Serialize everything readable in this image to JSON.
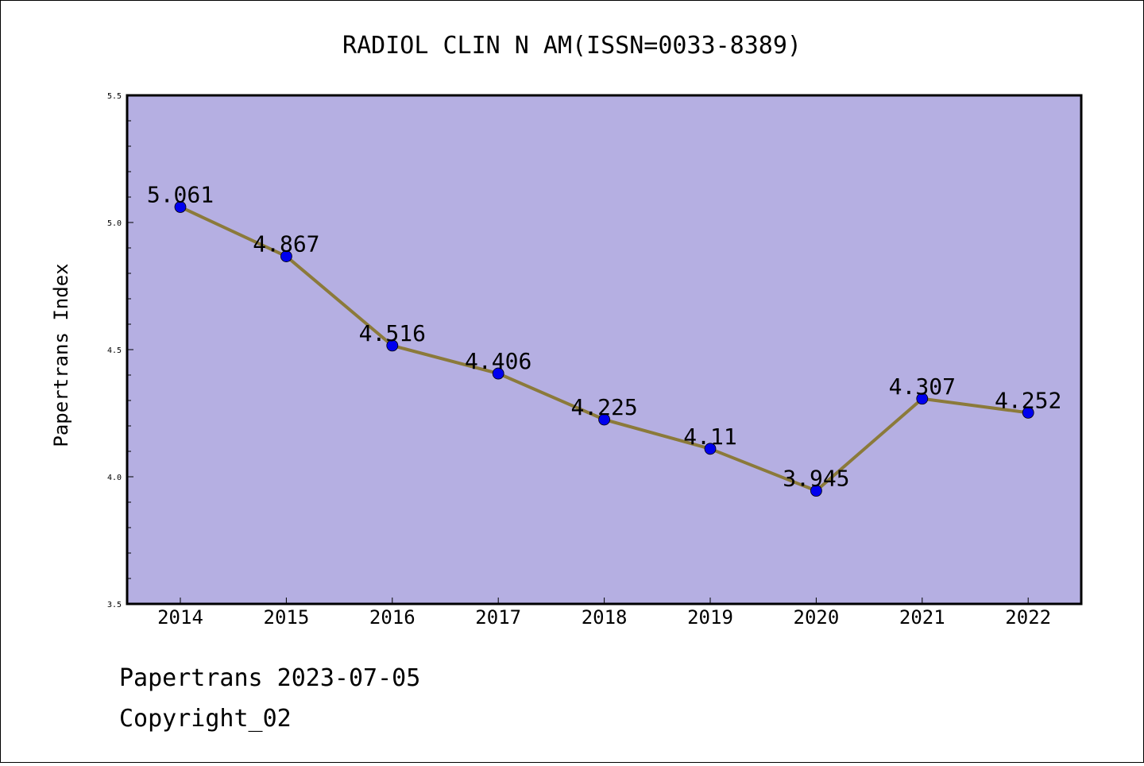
{
  "chart_data": {
    "type": "line",
    "title": "RADIOL CLIN N AM(ISSN=0033-8389)",
    "ylabel": "Papertrans Index",
    "xlabel": "",
    "categories": [
      "2014",
      "2015",
      "2016",
      "2017",
      "2018",
      "2019",
      "2020",
      "2021",
      "2022"
    ],
    "values": [
      5.061,
      4.867,
      4.516,
      4.406,
      4.225,
      4.11,
      3.945,
      4.307,
      4.252
    ],
    "data_labels": [
      "5.061",
      "4.867",
      "4.516",
      "4.406",
      "4.225",
      "4.11",
      "3.945",
      "4.307",
      "4.252"
    ],
    "ylim": [
      3.5,
      5.5
    ],
    "yticks": [
      "3.5",
      "4.0",
      "4.5",
      "5.0",
      "5.5"
    ],
    "grid": false,
    "colors": {
      "plot_background": "#b5afe2",
      "line": "#8b7a3a",
      "marker": "#0000ee"
    }
  },
  "footer": {
    "line1": "Papertrans 2023-07-05",
    "line2": "Copyright_02"
  }
}
